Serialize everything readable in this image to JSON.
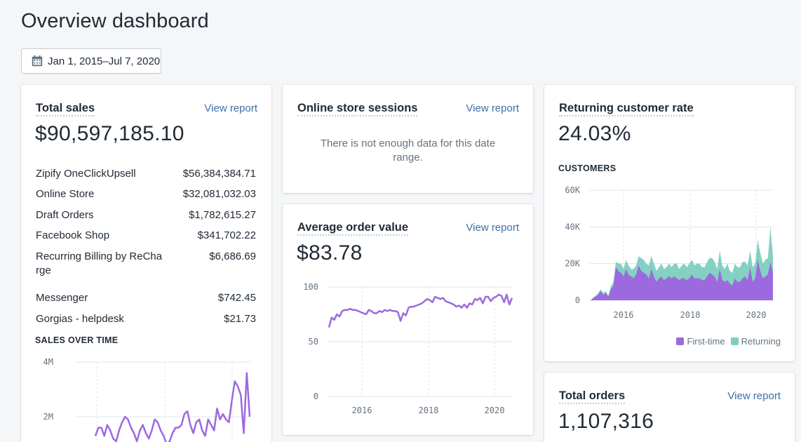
{
  "page": {
    "title": "Overview dashboard"
  },
  "date_range": {
    "label": "Jan 1, 2015–Jul 7, 2020",
    "icon": "calendar-icon"
  },
  "colors": {
    "purple": "#9c6ade",
    "teal": "#7dcfc0",
    "link": "#3f6fa6",
    "grid": "#dfe3e8"
  },
  "total_sales": {
    "title": "Total sales",
    "link": "View report",
    "value": "$90,597,185.10",
    "channels": [
      {
        "name": "Zipify OneClickUpsell",
        "amount": "$56,384,384.71"
      },
      {
        "name": "Online Store",
        "amount": "$32,081,032.03"
      },
      {
        "name": "Draft Orders",
        "amount": "$1,782,615.27"
      },
      {
        "name": "Facebook Shop",
        "amount": "$341,702.22"
      },
      {
        "name": "Recurring Billing by ReCharge",
        "amount": "$6,686.69"
      },
      {
        "name": "Messenger",
        "amount": "$742.45"
      },
      {
        "name": "Gorgias - helpdesk",
        "amount": "$21.73"
      }
    ],
    "chart_label": "SALES OVER TIME"
  },
  "online_sessions": {
    "title": "Online store sessions",
    "link": "View report",
    "message": "There is not enough data for this date range."
  },
  "average_order": {
    "title": "Average order value",
    "link": "View report",
    "value": "$83.78"
  },
  "returning_rate": {
    "title": "Returning customer rate",
    "value": "24.03%",
    "chart_label": "CUSTOMERS",
    "legend": [
      "First-time",
      "Returning"
    ]
  },
  "total_orders": {
    "title": "Total orders",
    "link": "View report",
    "value": "1,107,316"
  },
  "chart_data": [
    {
      "type": "line",
      "title": "SALES OVER TIME",
      "ylim": [
        0,
        4000000
      ],
      "y_ticks": [
        "4M",
        "2M"
      ],
      "series": [
        {
          "values": [
            1300000,
            1600000,
            1600000,
            1300000,
            1700000,
            1500000,
            1200000,
            1100000,
            1500000,
            1800000,
            2000000,
            1900000,
            1600000,
            1400000,
            1100000,
            1500000,
            1700000,
            1400000,
            1200000,
            1500000,
            1900000,
            1800000,
            1500000,
            1300000,
            1000000,
            1100000,
            1400000,
            1600000,
            1600000,
            1700000,
            2100000,
            2200000,
            1700000,
            1400000,
            1800000,
            1900000,
            1500000,
            1300000,
            1900000,
            1700000,
            1500000,
            2300000,
            1900000,
            2100000,
            1900000,
            1800000,
            2600000,
            3300000,
            3100000,
            2800000,
            1400000,
            3600000,
            2000000
          ]
        }
      ]
    },
    {
      "type": "line",
      "title": "Average order value",
      "x_ticks": [
        "2016",
        "2018",
        "2020"
      ],
      "ylim": [
        0,
        100
      ],
      "y_ticks": [
        100,
        50,
        0
      ],
      "series": [
        {
          "values": [
            63,
            72,
            70,
            75,
            73,
            78,
            79,
            79,
            80,
            79,
            79,
            78,
            77,
            76,
            75,
            79,
            78,
            76,
            76,
            78,
            77,
            79,
            78,
            79,
            78,
            78,
            77,
            69,
            76,
            74,
            81,
            82,
            82,
            83,
            84,
            85,
            87,
            89,
            88,
            86,
            91,
            90,
            89,
            90,
            87,
            86,
            85,
            84,
            82,
            83,
            81,
            84,
            81,
            85,
            84,
            89,
            88,
            90,
            85,
            91,
            91,
            87,
            90,
            91,
            93,
            92,
            86,
            93,
            84,
            90
          ]
        }
      ]
    },
    {
      "type": "area",
      "title": "CUSTOMERS",
      "x_ticks": [
        "2016",
        "2018",
        "2020"
      ],
      "ylim": [
        0,
        60000
      ],
      "y_ticks": [
        "60K",
        "40K",
        "20K",
        "0"
      ],
      "legend_position": "bottom-right",
      "series": [
        {
          "name": "First-time",
          "values": [
            0,
            1000,
            2000,
            3000,
            5000,
            3000,
            4000,
            2000,
            6000,
            8000,
            18000,
            16000,
            15000,
            13000,
            17000,
            14000,
            13000,
            12000,
            14000,
            19000,
            16000,
            15000,
            14000,
            12000,
            17000,
            13000,
            10000,
            12000,
            13000,
            11000,
            12000,
            13000,
            12000,
            13000,
            12000,
            11000,
            12000,
            12000,
            11000,
            12000,
            14000,
            12000,
            12000,
            12000,
            11000,
            11000,
            13000,
            15000,
            14000,
            13000,
            10000,
            17000,
            11000,
            10000,
            11000,
            9000,
            8000,
            12000,
            10000,
            10000,
            12000,
            13000,
            11000,
            18000,
            10000,
            12000,
            22000,
            16000,
            12000,
            13000,
            14000,
            21000,
            15000
          ]
        },
        {
          "name": "Returning",
          "values": [
            0,
            500,
            500,
            1000,
            1000,
            1000,
            1000,
            500,
            1500,
            2000,
            3000,
            4000,
            5000,
            4000,
            5000,
            5000,
            4000,
            5000,
            5000,
            5000,
            7000,
            7000,
            6000,
            7000,
            7000,
            7000,
            6000,
            6000,
            7000,
            6000,
            6000,
            7000,
            6000,
            7000,
            8000,
            6000,
            7000,
            8000,
            7000,
            8000,
            8000,
            7000,
            8000,
            8000,
            7000,
            7000,
            8000,
            8000,
            9000,
            8000,
            7000,
            10000,
            8000,
            7000,
            9000,
            7000,
            7000,
            8000,
            8000,
            8000,
            9000,
            8000,
            8000,
            9000,
            8000,
            8000,
            11000,
            10000,
            8000,
            9000,
            9000,
            19000,
            9000
          ]
        }
      ]
    }
  ]
}
